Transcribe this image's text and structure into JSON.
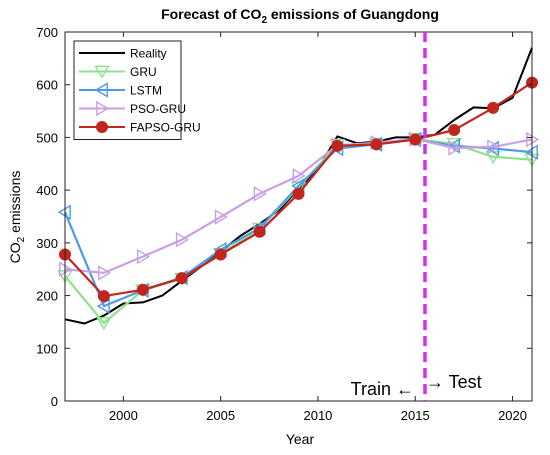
{
  "chart_data": {
    "type": "line",
    "title_parts": [
      "Forecast of CO",
      "2",
      " emissions of Guangdong"
    ],
    "xlabel": "Year",
    "ylabel_parts": [
      "CO",
      "2",
      " emissions"
    ],
    "xlim": [
      1997,
      2021
    ],
    "ylim": [
      0,
      700
    ],
    "xticks": [
      2000,
      2005,
      2010,
      2015,
      2020
    ],
    "yticks": [
      0,
      100,
      200,
      300,
      400,
      500,
      600,
      700
    ],
    "grid": false,
    "legend_position": "top-left",
    "split": {
      "x": 2015.5,
      "label_left": "Train ←",
      "label_right": "→ Test",
      "color": "#cc33ee"
    },
    "series": [
      {
        "name": "Reality",
        "color": "#000000",
        "marker": "none",
        "x": [
          1997,
          1998,
          1999,
          2000,
          2001,
          2002,
          2003,
          2004,
          2005,
          2006,
          2007,
          2008,
          2009,
          2010,
          2011,
          2012,
          2013,
          2014,
          2015,
          2016,
          2017,
          2018,
          2019,
          2020,
          2021
        ],
        "y": [
          155,
          147,
          162,
          185,
          187,
          200,
          228,
          255,
          283,
          313,
          336,
          362,
          402,
          440,
          502,
          489,
          492,
          500,
          500,
          505,
          533,
          557,
          555,
          575,
          670
        ]
      },
      {
        "name": "GRU",
        "color": "#8ee28e",
        "marker": "triangle-down",
        "x": [
          1997,
          1999,
          2001,
          2003,
          2005,
          2007,
          2009,
          2011,
          2013,
          2015,
          2017,
          2019,
          2021
        ],
        "y": [
          237,
          148,
          210,
          232,
          279,
          327,
          405,
          486,
          487,
          497,
          488,
          463,
          458
        ]
      },
      {
        "name": "LSTM",
        "color": "#4d9be8",
        "marker": "triangle-left",
        "x": [
          1997,
          1999,
          2001,
          2003,
          2005,
          2007,
          2009,
          2011,
          2013,
          2015,
          2017,
          2019,
          2021
        ],
        "y": [
          358,
          180,
          210,
          234,
          287,
          328,
          408,
          479,
          487,
          496,
          484,
          479,
          472
        ]
      },
      {
        "name": "PSO-GRU",
        "color": "#c9a0e3",
        "marker": "triangle-right",
        "x": [
          1997,
          1999,
          2001,
          2003,
          2005,
          2007,
          2009,
          2011,
          2013,
          2015,
          2017,
          2019,
          2021
        ],
        "y": [
          250,
          243,
          274,
          306,
          349,
          393,
          427,
          485,
          490,
          497,
          480,
          482,
          496
        ]
      },
      {
        "name": "FAPSO-GRU",
        "color": "#c0261e",
        "marker": "circle",
        "x": [
          1997,
          1999,
          2001,
          2003,
          2005,
          2007,
          2009,
          2011,
          2013,
          2015,
          2017,
          2019,
          2021
        ],
        "y": [
          278,
          199,
          211,
          233,
          278,
          321,
          393,
          484,
          487,
          496,
          514,
          556,
          604
        ]
      }
    ]
  }
}
